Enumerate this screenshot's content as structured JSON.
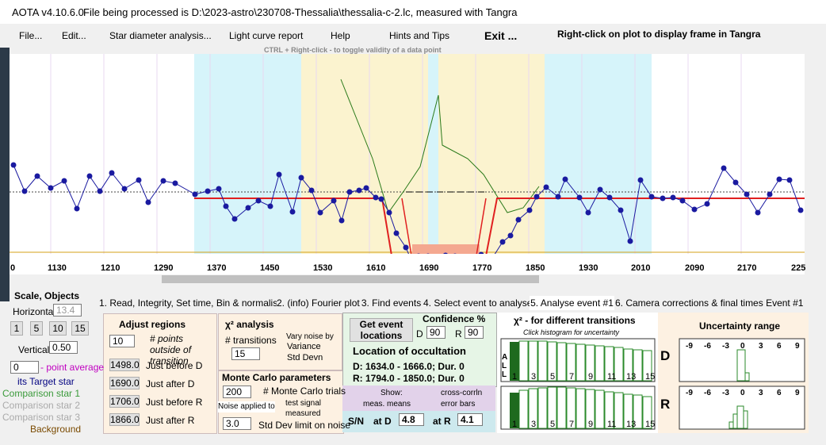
{
  "window_title": "AOTA v4.10.6.0",
  "file_info": "File being processed is D:\\2023-astro\\230708-Thessalia\\thessalia-c-2.lc, measured with Tangra",
  "menu": [
    "File...",
    "Edit...",
    "Star diameter analysis...",
    "Light curve report",
    "Help",
    "Hints and Tips",
    "Exit ..."
  ],
  "plot_hint": "Right-click on plot to display frame in Tangra",
  "toggle_hint": "CTRL + Right-click  -  to toggle validity of a data point",
  "x_axis_labels": [
    "0",
    "1130",
    "1210",
    "1290",
    "1370",
    "1450",
    "1530",
    "1610",
    "1690",
    "1770",
    "1850",
    "1930",
    "2010",
    "2090",
    "2170",
    "225"
  ],
  "scale_objects": {
    "title": "Scale,  Objects",
    "horizontal_label": "Horizontal",
    "horizontal_value": "13.4",
    "zoom_buttons": [
      "1",
      "5",
      "10",
      "15"
    ],
    "vertical_label": "Vertical",
    "vertical_value": "0.50",
    "average_value": "0",
    "average_label": "- point average",
    "objects": [
      "its  Target star",
      "Comparison star 1",
      "Comparison star 2",
      "Comparison star 3",
      "Background"
    ]
  },
  "tabs": [
    "1.  Read, Integrity, Set time, Bin & normalise",
    "2. (info)  Fourier plot",
    "3. Find events",
    "4. Select event to analyse",
    "5. Analyse event #1",
    "6. Camera corrections & final times Event #1"
  ],
  "adjust_regions": {
    "title": "Adjust regions",
    "points_value": "10",
    "points_label": "# points outside of transition",
    "frames": [
      {
        "value": "1498.0",
        "label": "Just before D"
      },
      {
        "value": "1690.0",
        "label": "Just after D"
      },
      {
        "value": "1706.0",
        "label": "Just before R"
      },
      {
        "value": "1866.0",
        "label": "Just after R"
      }
    ]
  },
  "chi2_analysis": {
    "title": "χ² analysis",
    "transitions_label": "# transitions",
    "transitions_value": "15",
    "noise_title": "Vary noise by",
    "noise_options": [
      "Variance",
      "Std Devn"
    ]
  },
  "monte_carlo": {
    "title": "Monte Carlo parameters",
    "trials_value": "200",
    "trials_label": "# Monte Carlo trials",
    "noise_applied_label": "Noise applied to",
    "noise_options": [
      "test signal",
      "measured"
    ],
    "limit_value": "3.0",
    "limit_label": "Std Dev limit on noise"
  },
  "event": {
    "button": "Get event locations",
    "confidence_label": "Confidence %",
    "d_label": "D",
    "d_value": "90",
    "r_label": "R",
    "r_value": "90",
    "location_title": "Location of occultation",
    "d_location": "D: 1634.0 - 1666.0; Dur. 0",
    "r_location": "R: 1794.0 - 1850.0; Dur. 0",
    "show_label": "Show:",
    "checkboxes": [
      "meas. means",
      "cross-corrln",
      "error bars"
    ],
    "sn_label": "S/N",
    "at_d_label": "at D",
    "at_d_value": "4.8",
    "at_r_label": "at R",
    "at_r_value": "4.1"
  },
  "transitions_panel": {
    "title": "χ² - for different transitions",
    "subtitle": "Click histogram for uncertainty",
    "side_letters": [
      "A",
      "L",
      "L"
    ],
    "x_labels": [
      "1",
      "3",
      "5",
      "7",
      "9",
      "11",
      "13",
      "15"
    ],
    "d_label": "D",
    "r_label": "R"
  },
  "uncertainty": {
    "title": "Uncertainty range",
    "x_labels": [
      "-9",
      "-6",
      "-3",
      "0",
      "3",
      "6",
      "9"
    ]
  }
}
